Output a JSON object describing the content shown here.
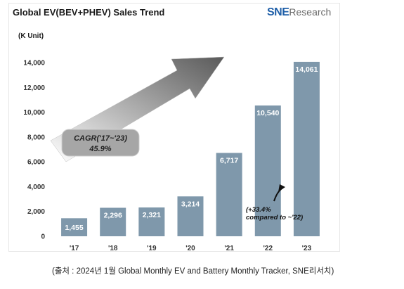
{
  "chart_data": {
    "type": "bar",
    "title": "Global EV(BEV+PHEV)  Sales Trend",
    "unit_label": "(K Unit)",
    "categories": [
      "'17",
      "'18",
      "'19",
      "'20",
      "'21",
      "'22",
      "'23"
    ],
    "values": [
      1455,
      2296,
      2321,
      3214,
      6717,
      10540,
      14061
    ],
    "value_labels": [
      "1,455",
      "2,296",
      "2,321",
      "3,214",
      "6,717",
      "10,540",
      "14,061"
    ],
    "ylim": [
      0,
      14000
    ],
    "yticks": [
      0,
      2000,
      4000,
      6000,
      8000,
      10000,
      12000,
      14000
    ],
    "ytick_labels": [
      "0",
      "2,000",
      "4,000",
      "6,000",
      "8,000",
      "10,000",
      "12,000",
      "14,000"
    ],
    "bar_color": "#7f98ab",
    "grid": false,
    "cagr": {
      "line1": "CAGR('17~'23)",
      "line2": "45.9%"
    },
    "annotation": {
      "line1": "(+33.4%",
      "line2": "compared to ~'22)"
    }
  },
  "logo": {
    "brand": "SNE",
    "suffix": "Research"
  },
  "footnote": "(출처 : 2024년  1월  Global Monthly EV and Battery Monthly Tracker, SNE리서치)"
}
